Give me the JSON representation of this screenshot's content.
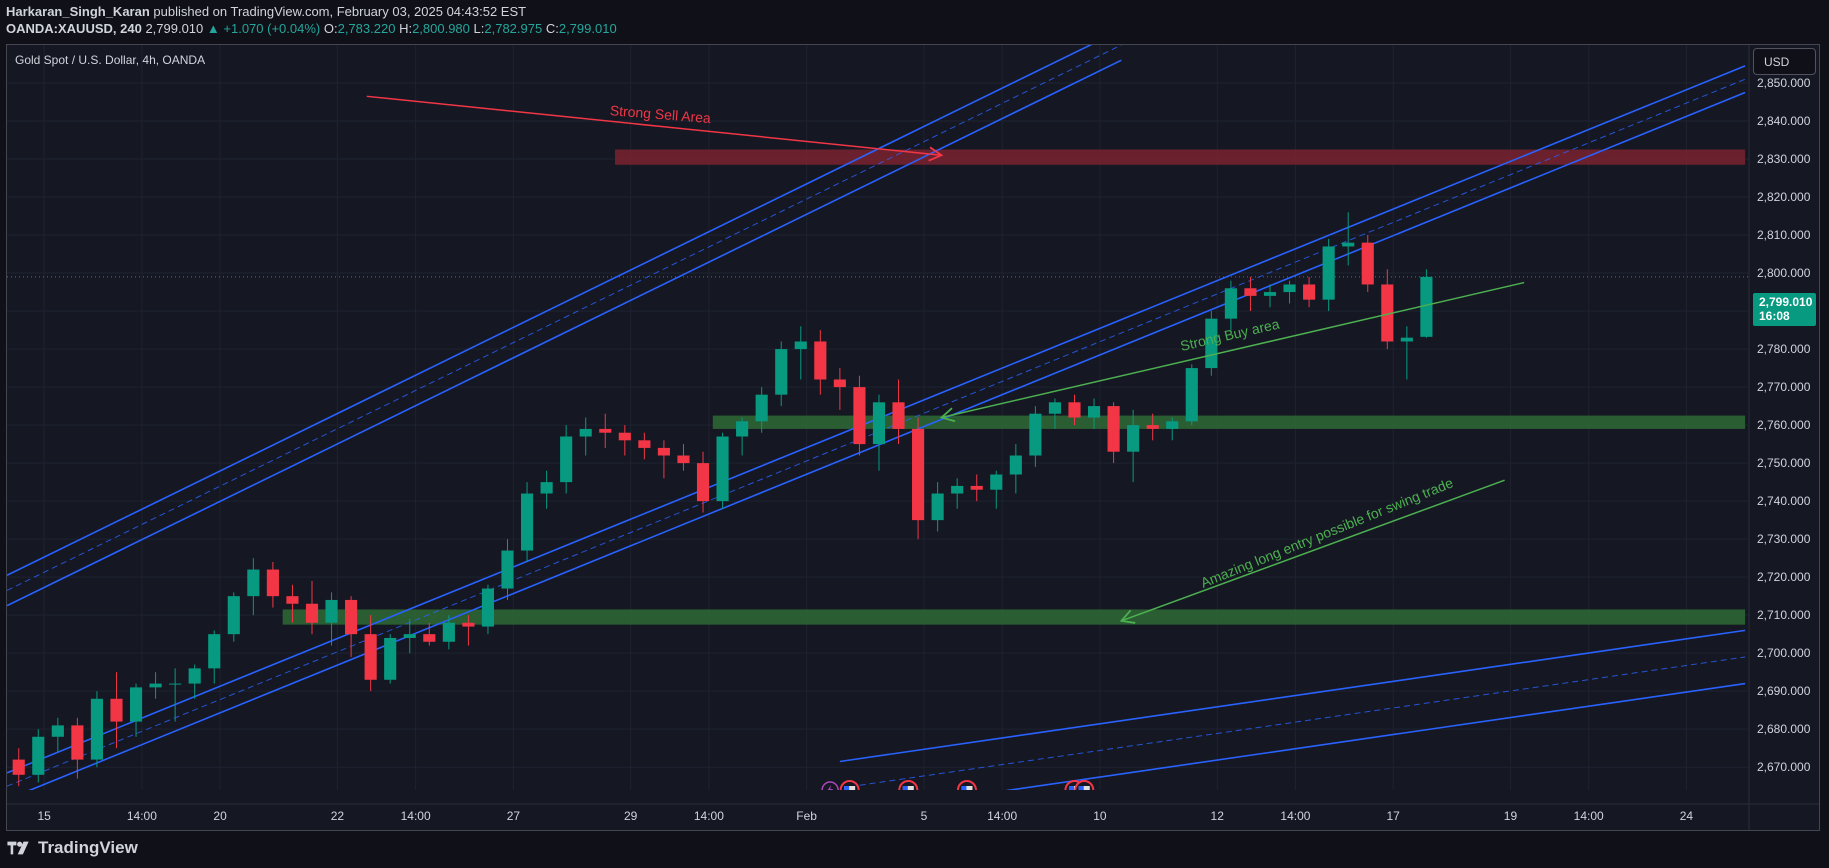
{
  "header": {
    "author": "Harkaran_Singh_Karan",
    "published_text": "published on TradingView.com, February 03, 2025 04:43:52 EST",
    "symbol": "OANDA:XAUUSD, 240",
    "last_price": "2,799.010",
    "change": "▲ +1.070 (+0.04%)",
    "o_label": "O:",
    "o": "2,783.220",
    "h_label": "H:",
    "h": "2,800.980",
    "l_label": "L:",
    "l": "2,782.975",
    "c_label": "C:",
    "c": "2,799.010"
  },
  "chart_title": "Gold Spot / U.S. Dollar, 4h, OANDA",
  "currency_button": "USD",
  "price_tag": {
    "price": "2,799.010",
    "countdown": "16:08"
  },
  "footer": {
    "brand": "TradingView"
  },
  "colors": {
    "up": "#089981",
    "down": "#f23645",
    "channel": "#2962ff",
    "sell_zone": "#7a2230",
    "buy_zone": "#2e6b35",
    "annotation_red": "#f23645",
    "annotation_green": "#4caf50"
  },
  "chart_data": {
    "type": "candlestick",
    "ylim": [
      2664,
      2860
    ],
    "y_ticks": [
      2670,
      2680,
      2690,
      2700,
      2710,
      2720,
      2730,
      2740,
      2750,
      2760,
      2770,
      2780,
      2790,
      2800,
      2810,
      2820,
      2830,
      2840,
      2850
    ],
    "y_tick_labels": [
      "2,670.000",
      "2,680.000",
      "2,690.000",
      "2,700.000",
      "2,710.000",
      "2,720.000",
      "2,730.000",
      "2,740.000",
      "2,750.000",
      "2,760.000",
      "2,770.000",
      "2,780.000",
      "2,790.000",
      "2,800.000",
      "2,810.000",
      "2,820.000",
      "2,830.000",
      "2,840.000",
      "2,850.000"
    ],
    "x_range": [
      -0.6,
      88.5
    ],
    "x_ticks": [
      {
        "bar": 1.3,
        "label": "15"
      },
      {
        "bar": 6.3,
        "label": "14:00"
      },
      {
        "bar": 10.3,
        "label": "20"
      },
      {
        "bar": 16.3,
        "label": "22"
      },
      {
        "bar": 20.3,
        "label": "14:00"
      },
      {
        "bar": 25.3,
        "label": "27"
      },
      {
        "bar": 31.3,
        "label": "29"
      },
      {
        "bar": 35.3,
        "label": "14:00"
      },
      {
        "bar": 40.3,
        "label": "Feb"
      },
      {
        "bar": 46.3,
        "label": "5"
      },
      {
        "bar": 50.3,
        "label": "14:00"
      },
      {
        "bar": 55.3,
        "label": "10"
      },
      {
        "bar": 61.3,
        "label": "12"
      },
      {
        "bar": 65.3,
        "label": "14:00"
      },
      {
        "bar": 70.3,
        "label": "17"
      },
      {
        "bar": 76.3,
        "label": "19"
      },
      {
        "bar": 80.3,
        "label": "14:00"
      },
      {
        "bar": 85.3,
        "label": "24"
      }
    ],
    "candles": [
      [
        2672,
        2675,
        2665,
        2668
      ],
      [
        2668,
        2680,
        2666,
        2678
      ],
      [
        2678,
        2683,
        2674,
        2681
      ],
      [
        2681,
        2683,
        2667,
        2672
      ],
      [
        2672,
        2690,
        2670,
        2688
      ],
      [
        2688,
        2695,
        2675,
        2682
      ],
      [
        2682,
        2692,
        2678,
        2691
      ],
      [
        2691,
        2695,
        2688,
        2692
      ],
      [
        2692,
        2696,
        2682,
        2692
      ],
      [
        2692,
        2697,
        2688,
        2696
      ],
      [
        2696,
        2706,
        2692,
        2705
      ],
      [
        2705,
        2716,
        2703,
        2715
      ],
      [
        2715,
        2725,
        2710,
        2722
      ],
      [
        2722,
        2724,
        2712,
        2715
      ],
      [
        2715,
        2718,
        2708,
        2713
      ],
      [
        2713,
        2719,
        2705,
        2708
      ],
      [
        2708,
        2716,
        2702,
        2714
      ],
      [
        2714,
        2715,
        2699,
        2705
      ],
      [
        2705,
        2710,
        2690,
        2693
      ],
      [
        2693,
        2705,
        2692,
        2704
      ],
      [
        2704,
        2709,
        2700,
        2705
      ],
      [
        2705,
        2708,
        2702,
        2703
      ],
      [
        2703,
        2710,
        2701,
        2708
      ],
      [
        2708,
        2710,
        2702,
        2707
      ],
      [
        2707,
        2718,
        2705,
        2717
      ],
      [
        2717,
        2730,
        2714,
        2727
      ],
      [
        2727,
        2745,
        2724,
        2742
      ],
      [
        2742,
        2748,
        2738,
        2745
      ],
      [
        2745,
        2760,
        2742,
        2757
      ],
      [
        2757,
        2762,
        2752,
        2759
      ],
      [
        2759,
        2763,
        2754,
        2758
      ],
      [
        2758,
        2760,
        2752,
        2756
      ],
      [
        2756,
        2758,
        2751,
        2754
      ],
      [
        2754,
        2756,
        2746,
        2752
      ],
      [
        2752,
        2755,
        2748,
        2750
      ],
      [
        2750,
        2753,
        2737,
        2740
      ],
      [
        2740,
        2758,
        2738,
        2757
      ],
      [
        2757,
        2762,
        2752,
        2761
      ],
      [
        2761,
        2770,
        2758,
        2768
      ],
      [
        2768,
        2782,
        2765,
        2780
      ],
      [
        2780,
        2786,
        2772,
        2782
      ],
      [
        2782,
        2785,
        2768,
        2772
      ],
      [
        2772,
        2775,
        2764,
        2770
      ],
      [
        2770,
        2773,
        2752,
        2755
      ],
      [
        2755,
        2768,
        2748,
        2766
      ],
      [
        2766,
        2772,
        2755,
        2759
      ],
      [
        2759,
        2762,
        2730,
        2735
      ],
      [
        2735,
        2745,
        2732,
        2742
      ],
      [
        2742,
        2746,
        2738,
        2744
      ],
      [
        2744,
        2747,
        2740,
        2743
      ],
      [
        2743,
        2748,
        2738,
        2747
      ],
      [
        2747,
        2755,
        2742,
        2752
      ],
      [
        2752,
        2765,
        2749,
        2763
      ],
      [
        2763,
        2767,
        2759,
        2766
      ],
      [
        2766,
        2768,
        2760,
        2762
      ],
      [
        2762,
        2767,
        2759,
        2765
      ],
      [
        2765,
        2766,
        2750,
        2753
      ],
      [
        2753,
        2764,
        2745,
        2760
      ],
      [
        2760,
        2763,
        2756,
        2759
      ],
      [
        2759,
        2762,
        2756,
        2761
      ],
      [
        2761,
        2776,
        2760,
        2775
      ],
      [
        2775,
        2790,
        2773,
        2788
      ],
      [
        2788,
        2798,
        2785,
        2796
      ],
      [
        2796,
        2799,
        2790,
        2794
      ],
      [
        2794,
        2797,
        2791,
        2795
      ],
      [
        2795,
        2798,
        2792,
        2797
      ],
      [
        2797,
        2799,
        2791,
        2793
      ],
      [
        2793,
        2809,
        2790,
        2807
      ],
      [
        2807,
        2816,
        2802,
        2808
      ],
      [
        2808,
        2810,
        2795,
        2797
      ],
      [
        2797,
        2801,
        2780,
        2782
      ],
      [
        2782,
        2786,
        2772,
        2783
      ],
      [
        2783.22,
        2800.98,
        2782.975,
        2799.01
      ]
    ],
    "channels": [
      {
        "name": "upper",
        "p1": [
          -0.6,
          2716.5
        ],
        "p2": [
          56.4,
          2860
        ],
        "width": 4
      },
      {
        "name": "middle",
        "p1": [
          -0.6,
          2665
        ],
        "p2": [
          88.3,
          2851
        ],
        "width": 3.5
      },
      {
        "name": "lower",
        "p1": [
          42,
          2664.5
        ],
        "p2": [
          88.3,
          2699
        ],
        "width": 7
      }
    ],
    "zones": [
      {
        "name": "sell-zone",
        "x1": 30.5,
        "x2": 88.3,
        "y1": 2828.5,
        "y2": 2832.5,
        "color": "#7a2230"
      },
      {
        "name": "buy-zone-1",
        "x1": 35.5,
        "x2": 88.3,
        "y1": 2759,
        "y2": 2762.5,
        "color": "#2e6b35"
      },
      {
        "name": "buy-zone-2",
        "x1": 13.5,
        "x2": 88.3,
        "y1": 2707.5,
        "y2": 2711.5,
        "color": "#2e6b35"
      }
    ],
    "annotations": [
      {
        "text": "Strong Sell Area",
        "color": "#f23645",
        "from": [
          17.8,
          2846.5
        ],
        "to": [
          47.2,
          2831
        ],
        "text_at": [
          32.8,
          2840.5
        ],
        "angle": 4.5
      },
      {
        "text": "Strong Buy area",
        "color": "#4caf50",
        "from": [
          77,
          2797.5
        ],
        "to": [
          47.2,
          2762
        ],
        "text_at": [
          62,
          2782.5
        ],
        "angle": -13
      },
      {
        "text": "Amazing long entry possible for swing trade",
        "color": "#4caf50",
        "from": [
          76,
          2745.5
        ],
        "to": [
          56.4,
          2708.5
        ],
        "text_at": [
          67,
          2730.5
        ],
        "angle": -22
      }
    ],
    "event_markers": [
      {
        "bar": 41.5,
        "kind": "lightning"
      },
      {
        "bar": 42.5,
        "kind": "flag"
      },
      {
        "bar": 45.5,
        "kind": "flag"
      },
      {
        "bar": 48.5,
        "kind": "flag"
      },
      {
        "bar": 54,
        "kind": "flag"
      },
      {
        "bar": 54.5,
        "kind": "flag"
      }
    ],
    "last_price_line": 2799.01
  }
}
